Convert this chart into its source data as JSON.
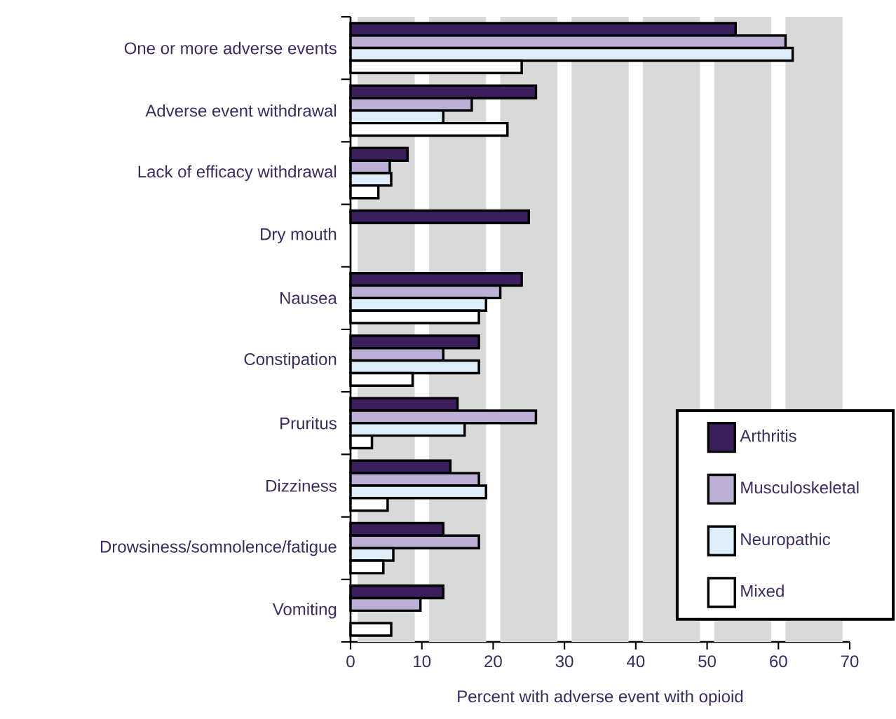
{
  "chart_data": {
    "type": "bar",
    "orientation": "horizontal",
    "xlabel": "Percent with adverse event with opioid",
    "categories": [
      "One or more adverse events",
      "Adverse event withdrawal",
      "Lack of efficacy withdrawal",
      "Dry mouth",
      "Nausea",
      "Constipation",
      "Pruritus",
      "Dizziness",
      "Drowsiness/somnolence/fatigue",
      "Vomiting"
    ],
    "series": [
      {
        "name": "Arthritis",
        "color": "#3b1f5c",
        "values": [
          54,
          26,
          8,
          25,
          24,
          18,
          15,
          14,
          13,
          13
        ]
      },
      {
        "name": "Musculoskeletal",
        "color": "#bdb0d6",
        "values": [
          61,
          17,
          5.5,
          null,
          21,
          13,
          26,
          18,
          18,
          9.8
        ]
      },
      {
        "name": "Neuropathic",
        "color": "#ddeefa",
        "values": [
          62,
          13,
          5.7,
          null,
          19,
          18,
          16,
          19,
          6,
          null
        ]
      },
      {
        "name": "Mixed",
        "color": "#ffffff",
        "values": [
          24,
          22,
          3.9,
          null,
          18,
          8.7,
          3,
          5.2,
          4.6,
          5.7
        ]
      }
    ],
    "xlim": [
      0,
      70
    ],
    "xticks": [
      0,
      10,
      20,
      30,
      40,
      50,
      60,
      70
    ],
    "bands": [
      {
        "axis": "x",
        "from": 1,
        "to": 9,
        "color": "#d9d9d9"
      },
      {
        "axis": "x",
        "from": 11,
        "to": 19,
        "color": "#d9d9d9"
      },
      {
        "axis": "x",
        "from": 21,
        "to": 29,
        "color": "#d9d9d9"
      },
      {
        "axis": "x",
        "from": 31,
        "to": 39,
        "color": "#d9d9d9"
      },
      {
        "axis": "x",
        "from": 41,
        "to": 49,
        "color": "#d9d9d9"
      },
      {
        "axis": "x",
        "from": 51,
        "to": 59,
        "color": "#d9d9d9"
      },
      {
        "axis": "x",
        "from": 61,
        "to": 69,
        "color": "#d9d9d9"
      }
    ],
    "legend": "bottom right"
  }
}
